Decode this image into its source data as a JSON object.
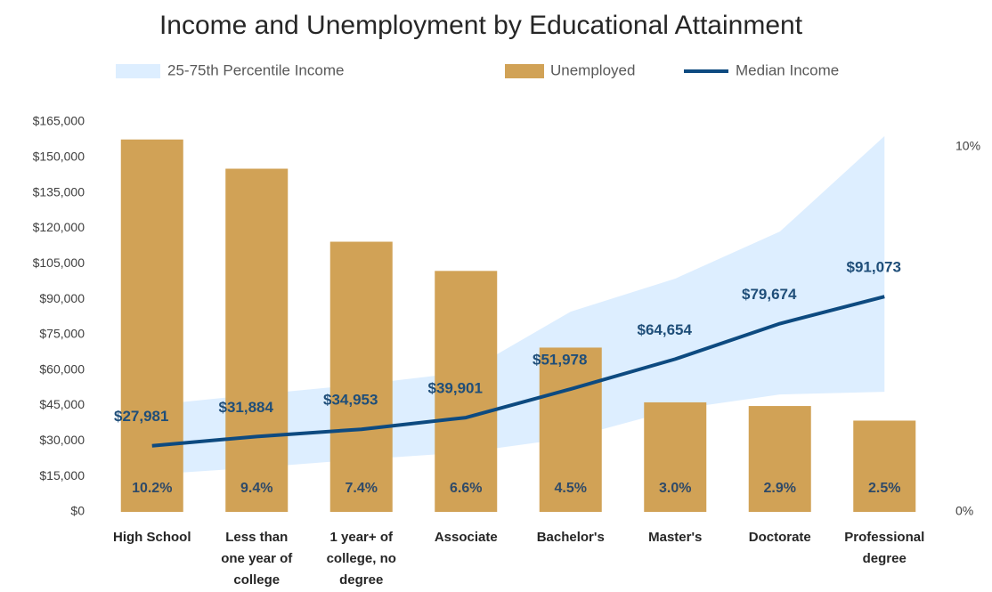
{
  "chart_data": {
    "type": "combo",
    "title": "Income and Unemployment by Educational Attainment",
    "categories": [
      "High School",
      "Less than one year of college",
      "1 year+ of college, no degree",
      "Associate",
      "Bachelor's",
      "Master's",
      "Doctorate",
      "Professional degree"
    ],
    "ylim": [
      0,
      165000
    ],
    "yticks": [
      {
        "value": 0,
        "label": "$0"
      },
      {
        "value": 15000,
        "label": "$15,000"
      },
      {
        "value": 30000,
        "label": "$30,000"
      },
      {
        "value": 45000,
        "label": "$45,000"
      },
      {
        "value": 60000,
        "label": "$60,000"
      },
      {
        "value": 75000,
        "label": "$75,000"
      },
      {
        "value": 90000,
        "label": "$90,000"
      },
      {
        "value": 105000,
        "label": "$105,000"
      },
      {
        "value": 120000,
        "label": "$120,000"
      },
      {
        "value": 135000,
        "label": "$135,000"
      },
      {
        "value": 150000,
        "label": "$150,000"
      },
      {
        "value": 165000,
        "label": "$165,000"
      }
    ],
    "y2lim": [
      0,
      10.68
    ],
    "y2ticks": [
      {
        "value": 0,
        "label": "0%"
      },
      {
        "value": 10,
        "label": "10%"
      }
    ],
    "series": [
      {
        "name": "25-75th Percentile Income",
        "type": "band",
        "color": "#ddeeff",
        "low": [
          15800,
          18800,
          22200,
          25200,
          31300,
          43300,
          49700,
          50800
        ],
        "high": [
          45200,
          49700,
          53900,
          59100,
          84700,
          98700,
          118600,
          159000
        ]
      },
      {
        "name": "Unemployed",
        "type": "bar",
        "axis": "y2",
        "color": "#d1a256",
        "values": [
          10.2,
          9.4,
          7.4,
          6.6,
          4.5,
          3.0,
          2.9,
          2.5
        ],
        "value_labels": [
          "10.2%",
          "9.4%",
          "7.4%",
          "6.6%",
          "4.5%",
          "3.0%",
          "2.9%",
          "2.5%"
        ]
      },
      {
        "name": "Median Income",
        "type": "line",
        "color": "#0d4a80",
        "values": [
          27981,
          31884,
          34953,
          39901,
          51978,
          64654,
          79674,
          91073
        ],
        "value_labels": [
          "$27,981",
          "$31,884",
          "$34,953",
          "$39,901",
          "$51,978",
          "$64,654",
          "$79,674",
          "$91,073"
        ]
      }
    ]
  }
}
